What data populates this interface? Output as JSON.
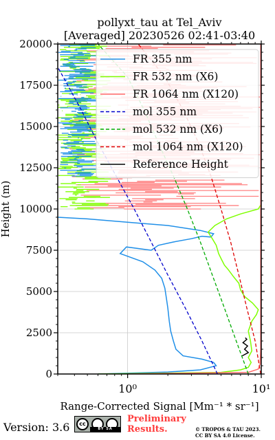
{
  "chart_data": {
    "type": "line",
    "title": "pollyxt_tau at Tel_Aviv",
    "subtitle": "[Averaged] 20230526 02:41-03:40",
    "xlabel": "Range-Corrected Signal [Mm⁻¹ * sr⁻¹]",
    "ylabel": "Height (m)",
    "xscale": "log",
    "xlim": [
      0.3,
      10
    ],
    "ylim": [
      0,
      20000
    ],
    "xticks": [
      1,
      10
    ],
    "xtick_labels": [
      "10⁰",
      "10¹"
    ],
    "yticks": [
      0,
      2500,
      5000,
      7500,
      10000,
      12500,
      15000,
      17500,
      20000
    ],
    "grid": true,
    "legend_position": "top-right",
    "series": [
      {
        "name": "FR 355 nm",
        "color": "#1f8fe8",
        "style": "solid",
        "points": [
          [
            0.6,
            0
          ],
          [
            2.0,
            120
          ],
          [
            3.5,
            250
          ],
          [
            4.6,
            500
          ],
          [
            4.4,
            700
          ],
          [
            3.6,
            900
          ],
          [
            2.6,
            1100
          ],
          [
            2.3,
            1500
          ],
          [
            2.2,
            2000
          ],
          [
            2.1,
            2600
          ],
          [
            2.05,
            3200
          ],
          [
            2.0,
            4000
          ],
          [
            1.95,
            4600
          ],
          [
            1.9,
            5200
          ],
          [
            1.8,
            5800
          ],
          [
            1.6,
            6300
          ],
          [
            1.3,
            6800
          ],
          [
            0.88,
            7300
          ],
          [
            0.98,
            7700
          ],
          [
            1.5,
            7500
          ],
          [
            1.7,
            7800
          ],
          [
            2.2,
            8000
          ],
          [
            3.0,
            8200
          ],
          [
            3.6,
            8350
          ],
          [
            4.2,
            8300
          ],
          [
            4.4,
            8500
          ],
          [
            3.5,
            8700
          ],
          [
            2.0,
            9000
          ],
          [
            1.0,
            9200
          ],
          [
            0.5,
            9400
          ],
          [
            0.3,
            9500
          ]
        ]
      },
      {
        "name": "FR 532 nm (X6)",
        "color": "#7fff00",
        "style": "solid",
        "points": [
          [
            0.6,
            0
          ],
          [
            5.0,
            100
          ],
          [
            7.0,
            250
          ],
          [
            8.0,
            400
          ],
          [
            8.4,
            700
          ],
          [
            8.0,
            1000
          ],
          [
            8.5,
            1400
          ],
          [
            8.3,
            2000
          ],
          [
            8.0,
            2600
          ],
          [
            8.5,
            3200
          ],
          [
            9.2,
            3600
          ],
          [
            9.5,
            3900
          ],
          [
            8.6,
            4300
          ],
          [
            7.5,
            4700
          ],
          [
            7.0,
            5100
          ],
          [
            6.8,
            5500
          ],
          [
            6.2,
            5900
          ],
          [
            5.7,
            6300
          ],
          [
            5.3,
            6600
          ],
          [
            5.0,
            7000
          ],
          [
            4.8,
            7300
          ],
          [
            4.6,
            7800
          ],
          [
            4.3,
            8200
          ],
          [
            4.0,
            8600
          ],
          [
            4.5,
            9000
          ],
          [
            5.5,
            9400
          ],
          [
            7.0,
            9700
          ],
          [
            9.5,
            10000
          ],
          [
            10.0,
            10300
          ]
        ]
      },
      {
        "name": "FR 1064 nm (X120)",
        "color": "#ff6b6b",
        "style": "solid",
        "points": [
          [
            1.0,
            0
          ],
          [
            8.0,
            100
          ],
          [
            9.5,
            300
          ],
          [
            9.8,
            600
          ],
          [
            9.9,
            1500
          ],
          [
            9.9,
            2500
          ],
          [
            9.9,
            4000
          ],
          [
            9.9,
            6000
          ],
          [
            9.9,
            8000
          ],
          [
            9.9,
            10000
          ],
          [
            9.9,
            12000
          ],
          [
            9.9,
            14000
          ],
          [
            9.9,
            16000
          ],
          [
            9.9,
            18000
          ],
          [
            9.9,
            20000
          ]
        ]
      },
      {
        "name": "mol 355 nm",
        "color": "#0000cc",
        "style": "dashed",
        "points": [
          [
            4.7,
            0
          ],
          [
            3.6,
            2000
          ],
          [
            2.7,
            4000
          ],
          [
            2.0,
            6000
          ],
          [
            1.5,
            8000
          ],
          [
            1.12,
            10000
          ],
          [
            0.82,
            12000
          ],
          [
            0.6,
            14000
          ],
          [
            0.45,
            16000
          ],
          [
            0.33,
            18000
          ],
          [
            0.3,
            18600
          ]
        ]
      },
      {
        "name": "mol 532 nm (X6)",
        "color": "#00aa00",
        "style": "dashed",
        "points": [
          [
            8.0,
            0
          ],
          [
            6.5,
            2000
          ],
          [
            5.3,
            4000
          ],
          [
            4.3,
            6000
          ],
          [
            3.5,
            8000
          ],
          [
            2.8,
            10000
          ],
          [
            2.2,
            12000
          ],
          [
            1.7,
            14000
          ],
          [
            1.33,
            16000
          ],
          [
            1.0,
            18000
          ],
          [
            0.6,
            20000
          ]
        ]
      },
      {
        "name": "mol 1064 nm (X120)",
        "color": "#dd0000",
        "style": "dashed",
        "points": [
          [
            9.9,
            0
          ],
          [
            9.0,
            2000
          ],
          [
            7.8,
            4000
          ],
          [
            6.8,
            6000
          ],
          [
            5.9,
            8000
          ],
          [
            5.0,
            10000
          ],
          [
            4.2,
            12000
          ],
          [
            3.4,
            14000
          ],
          [
            2.6,
            16000
          ],
          [
            1.9,
            18000
          ],
          [
            1.2,
            20000
          ]
        ]
      },
      {
        "name": "Reference Height",
        "color": "#000000",
        "style": "solid",
        "points": [
          [
            7.2,
            1100
          ],
          [
            8.0,
            1300
          ],
          [
            7.5,
            1500
          ],
          [
            7.9,
            1700
          ],
          [
            7.3,
            1900
          ],
          [
            7.8,
            2100
          ],
          [
            7.6,
            2200
          ]
        ]
      }
    ],
    "noise_bands": [
      {
        "color": "#ff8080",
        "x_range": [
          0.35,
          10
        ],
        "y_range": [
          10000,
          20000
        ]
      },
      {
        "color": "#7fff00",
        "x_range": [
          0.3,
          0.75
        ],
        "y_range": [
          10000,
          20000
        ]
      },
      {
        "color": "#1f8fe8",
        "x_range": [
          0.3,
          0.6
        ],
        "y_range": [
          12000,
          20000
        ]
      }
    ]
  },
  "footer": {
    "version": "Version: 3.6",
    "license_badge": "cc-by-sa-badge",
    "license_badge_text": "BY SA",
    "preliminary_line1": "Preliminary",
    "preliminary_line2": "Results.",
    "copyright_line1": "© TROPOS & TAU 2023.",
    "copyright_line2": "CC BY SA 4.0 License."
  }
}
